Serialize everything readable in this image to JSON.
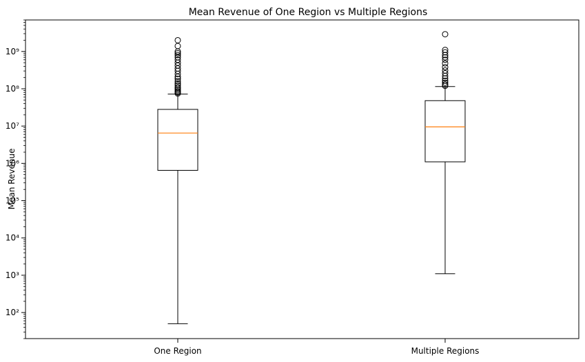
{
  "chart_data": {
    "type": "box",
    "title": "Mean Revenue of One Region vs Multiple Regions",
    "xlabel": "",
    "ylabel": "Mean Revenue",
    "yscale": "log",
    "ylim": [
      20,
      7000000000
    ],
    "grid": false,
    "categories": [
      "One Region",
      "Multiple Regions"
    ],
    "boxes": [
      {
        "category": "One Region",
        "whisker_low": 50,
        "q1": 650000,
        "median": 6500000,
        "q3": 28000000,
        "whisker_high": 72000000,
        "outliers": [
          75000000,
          80000000,
          85000000,
          92000000,
          100000000,
          110000000,
          125000000,
          140000000,
          160000000,
          185000000,
          210000000,
          250000000,
          300000000,
          350000000,
          420000000,
          500000000,
          600000000,
          700000000,
          800000000,
          900000000,
          1000000000,
          1400000000,
          2000000000
        ]
      },
      {
        "category": "Multiple Regions",
        "whisker_low": 1100,
        "q1": 1100000,
        "median": 9500000,
        "q3": 48000000,
        "whisker_high": 115000000,
        "outliers": [
          120000000,
          130000000,
          145000000,
          165000000,
          190000000,
          220000000,
          260000000,
          310000000,
          380000000,
          480000000,
          600000000,
          700000000,
          800000000,
          950000000,
          1100000000,
          2900000000
        ]
      }
    ],
    "colors": {
      "median": "#ff7f0e",
      "box": "#000000",
      "outlier_edge": "#000000"
    }
  }
}
